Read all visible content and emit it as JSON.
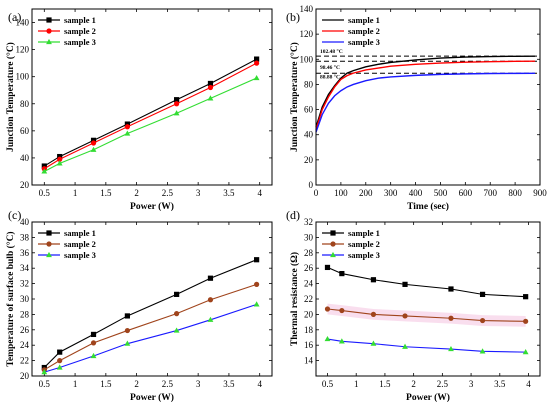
{
  "colors": {
    "black": "#000000",
    "red": "#ff0000",
    "green": "#33dd33",
    "blue": "#1a1aff",
    "brown": "#a0441c",
    "pink": "#f7d6ea"
  },
  "chart_data": [
    {
      "panel_label": "(a)",
      "type": "line",
      "xlabel": "Power (W)",
      "ylabel": "Junction Temperature (°C)",
      "xlim": [
        0.3,
        4.2
      ],
      "ylim": [
        20,
        150
      ],
      "xticks": [
        0.5,
        1.0,
        1.5,
        2.0,
        2.5,
        3.0,
        3.5,
        4.0
      ],
      "yticks": [
        20,
        40,
        60,
        80,
        100,
        120,
        140
      ],
      "x": [
        0.5,
        0.75,
        1.3,
        1.85,
        2.65,
        3.2,
        3.95
      ],
      "series": [
        {
          "name": "sample 1",
          "color": "#000000",
          "marker": "square",
          "values": [
            34,
            41,
            53,
            65,
            83,
            95,
            113
          ]
        },
        {
          "name": "sample 2",
          "color": "#ff0000",
          "marker": "circle",
          "values": [
            32,
            39,
            51,
            63,
            80,
            92,
            110
          ]
        },
        {
          "name": "sample 3",
          "color": "#33dd33",
          "marker": "triangle",
          "values": [
            30,
            36,
            46,
            58,
            73,
            84,
            99
          ]
        }
      ]
    },
    {
      "panel_label": "(b)",
      "type": "line",
      "xlabel": "Time (sec)",
      "ylabel": "Junction Temperature (°C)",
      "xlim": [
        0,
        900
      ],
      "ylim": [
        0,
        140
      ],
      "xticks": [
        0,
        100,
        200,
        300,
        400,
        500,
        600,
        700,
        800,
        900
      ],
      "yticks": [
        0,
        20,
        40,
        60,
        80,
        100,
        120,
        140
      ],
      "annotations": [
        {
          "text": "102.48 °C",
          "value": 102.48
        },
        {
          "text": "98.46 °C",
          "value": 98.46
        },
        {
          "text": "88.88 °C",
          "value": 88.88
        }
      ],
      "x": [
        0,
        25,
        50,
        75,
        100,
        125,
        150,
        200,
        250,
        300,
        400,
        500,
        600,
        700,
        800,
        880
      ],
      "series": [
        {
          "name": "sample 1",
          "color": "#000000",
          "values": [
            46,
            62,
            72,
            79,
            85,
            89,
            91,
            94,
            96,
            97.5,
            99.5,
            101,
            101.8,
            102.2,
            102.4,
            102.48
          ]
        },
        {
          "name": "sample 2",
          "color": "#ff0000",
          "values": [
            44,
            60,
            70,
            78,
            84,
            87,
            89,
            91.5,
            93,
            94.5,
            96,
            97,
            97.7,
            98.1,
            98.4,
            98.46
          ]
        },
        {
          "name": "sample 3",
          "color": "#1a1aff",
          "values": [
            42,
            56,
            65,
            71,
            75,
            78,
            80,
            83,
            85,
            86,
            87.2,
            88,
            88.4,
            88.7,
            88.8,
            88.88
          ]
        }
      ]
    },
    {
      "panel_label": "(c)",
      "type": "line",
      "xlabel": "Power (W)",
      "ylabel": "Temperature of surface bulb (°C)",
      "xlim": [
        0.3,
        4.2
      ],
      "ylim": [
        20,
        40
      ],
      "xticks": [
        0.5,
        1.0,
        1.5,
        2.0,
        2.5,
        3.0,
        3.5,
        4.0
      ],
      "yticks": [
        20,
        22,
        24,
        26,
        28,
        30,
        32,
        34,
        36,
        38,
        40
      ],
      "x": [
        0.5,
        0.75,
        1.3,
        1.85,
        2.65,
        3.2,
        3.95
      ],
      "series": [
        {
          "name": "sample 1",
          "color": "#000000",
          "marker": "square",
          "values": [
            21.1,
            23.1,
            25.4,
            27.8,
            30.6,
            32.7,
            35.1
          ]
        },
        {
          "name": "sample 2",
          "color": "#a0441c",
          "marker": "circle",
          "values": [
            20.8,
            22.0,
            24.3,
            25.9,
            28.1,
            29.9,
            31.9
          ]
        },
        {
          "name": "sample 3",
          "color": "#1a1aff",
          "marker": "triangle",
          "values": [
            20.5,
            21.1,
            22.6,
            24.2,
            25.9,
            27.3,
            29.3
          ]
        }
      ]
    },
    {
      "panel_label": "(d)",
      "type": "line",
      "xlabel": "Power (W)",
      "ylabel": "Thermal resistance (Ω)",
      "xlim": [
        0.3,
        4.2
      ],
      "ylim": [
        12,
        32
      ],
      "xticks": [
        0.5,
        1.0,
        1.5,
        2.0,
        2.5,
        3.0,
        3.5,
        4.0
      ],
      "yticks": [
        14,
        16,
        18,
        20,
        22,
        24,
        26,
        28,
        30,
        32
      ],
      "x": [
        0.5,
        0.75,
        1.3,
        1.85,
        2.65,
        3.2,
        3.95
      ],
      "series": [
        {
          "name": "sample 1",
          "color": "#000000",
          "marker": "square",
          "values": [
            26.1,
            25.3,
            24.5,
            23.9,
            23.3,
            22.6,
            22.3
          ]
        },
        {
          "name": "sample 2",
          "color": "#a0441c",
          "marker": "circle",
          "values": [
            20.7,
            20.5,
            20.0,
            19.8,
            19.5,
            19.2,
            19.1
          ]
        },
        {
          "name": "sample 3",
          "color": "#1a1aff",
          "marker": "triangle",
          "values": [
            16.8,
            16.5,
            16.2,
            15.8,
            15.5,
            15.2,
            15.1
          ]
        }
      ]
    }
  ]
}
